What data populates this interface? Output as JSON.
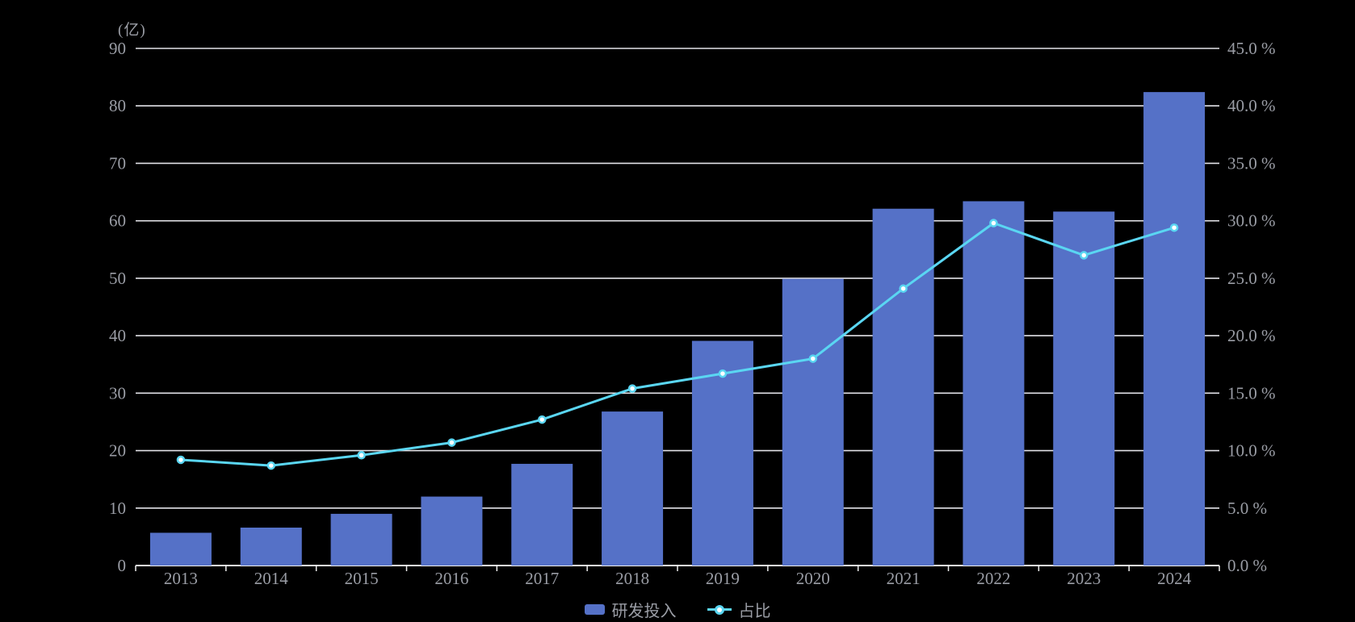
{
  "chart_data": {
    "type": "combo-bar-line",
    "title": "",
    "categories": [
      "2013",
      "2014",
      "2015",
      "2016",
      "2017",
      "2018",
      "2019",
      "2020",
      "2021",
      "2022",
      "2023",
      "2024"
    ],
    "series": [
      {
        "name": "研发投入",
        "type": "bar",
        "axis": "left",
        "unit": "亿",
        "values": [
          5.7,
          6.6,
          9.0,
          12.0,
          17.7,
          26.8,
          39.1,
          49.9,
          62.1,
          63.4,
          61.6,
          82.4
        ]
      },
      {
        "name": "占比",
        "type": "line",
        "axis": "right",
        "unit": "%",
        "values": [
          9.2,
          8.7,
          9.6,
          10.7,
          12.7,
          15.4,
          16.7,
          18.0,
          24.1,
          29.8,
          27.0,
          29.4
        ]
      }
    ],
    "left_axis": {
      "unit_label": "(亿)",
      "min": 0,
      "max": 90,
      "step": 10,
      "tick_labels": [
        "0",
        "10",
        "20",
        "30",
        "40",
        "50",
        "60",
        "70",
        "80",
        "90"
      ]
    },
    "right_axis": {
      "min": 0,
      "max": 45,
      "step": 5,
      "tick_labels": [
        "0.0 %",
        "5.0 %",
        "10.0 %",
        "15.0 %",
        "20.0 %",
        "25.0 %",
        "30.0 %",
        "35.0 %",
        "40.0 %",
        "45.0 %"
      ]
    },
    "legend": {
      "position": "bottom",
      "items": [
        {
          "label": "研发投入",
          "marker": "bar-swatch"
        },
        {
          "label": "占比",
          "marker": "line-dot"
        }
      ]
    },
    "grid": true,
    "colors": {
      "background": "#000000",
      "bar": "#5571C7",
      "line": "#5AD6F2",
      "marker_fill": "#FFFFFF",
      "grid_line": "#E3E3E8",
      "axis_line": "#F0F0F0",
      "text": "#9A9DA5"
    }
  }
}
